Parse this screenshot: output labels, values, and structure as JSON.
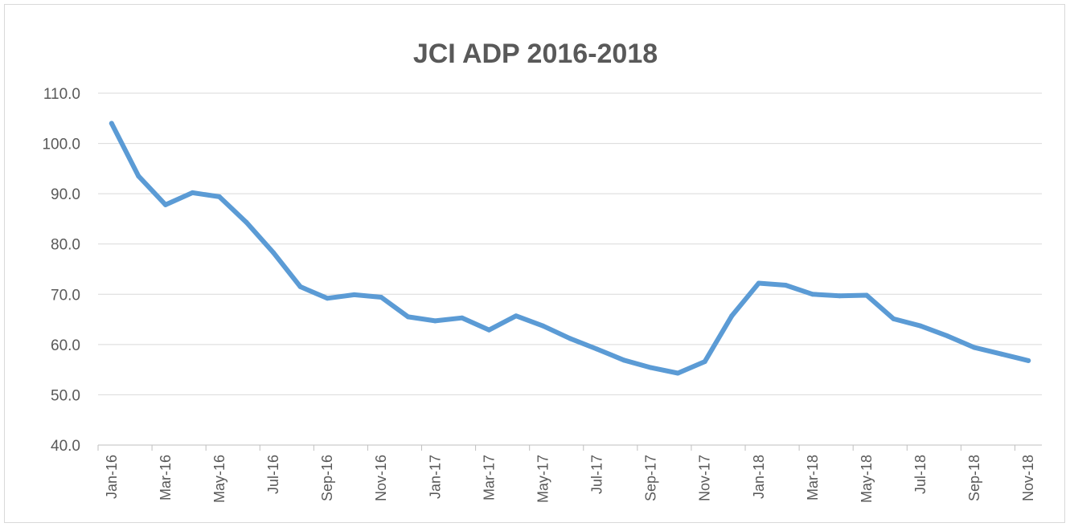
{
  "chart_data": {
    "type": "line",
    "title": "JCI ADP 2016-2018",
    "xlabel": "",
    "ylabel": "",
    "ylim": [
      40,
      110
    ],
    "y_ticks": [
      "40.0",
      "50.0",
      "60.0",
      "70.0",
      "80.0",
      "90.0",
      "100.0",
      "110.0"
    ],
    "x": [
      "Jan-16",
      "Feb-16",
      "Mar-16",
      "Apr-16",
      "May-16",
      "Jun-16",
      "Jul-16",
      "Aug-16",
      "Sep-16",
      "Oct-16",
      "Nov-16",
      "Dec-16",
      "Jan-17",
      "Feb-17",
      "Mar-17",
      "Apr-17",
      "May-17",
      "Jun-17",
      "Jul-17",
      "Aug-17",
      "Sep-17",
      "Oct-17",
      "Nov-17",
      "Dec-17",
      "Jan-18",
      "Feb-18",
      "Mar-18",
      "Apr-18",
      "May-18",
      "Jun-18",
      "Jul-18",
      "Aug-18",
      "Sep-18",
      "Oct-18",
      "Nov-18"
    ],
    "x_tick_labels": [
      "Jan-16",
      "Mar-16",
      "May-16",
      "Jul-16",
      "Sep-16",
      "Nov-16",
      "Jan-17",
      "Mar-17",
      "May-17",
      "Jul-17",
      "Sep-17",
      "Nov-17",
      "Jan-18",
      "Mar-18",
      "May-18",
      "Jul-18",
      "Sep-18",
      "Nov-18"
    ],
    "series": [
      {
        "values": [
          104.0,
          93.5,
          87.8,
          90.2,
          89.4,
          84.3,
          78.3,
          71.5,
          69.2,
          69.9,
          69.4,
          65.5,
          64.7,
          65.3,
          62.9,
          65.7,
          63.7,
          61.2,
          59.1,
          56.9,
          55.4,
          54.3,
          56.6,
          65.7,
          72.2,
          71.8,
          70.0,
          69.7,
          69.8,
          65.1,
          63.7,
          61.7,
          59.4,
          58.1,
          56.8
        ],
        "color": "#5b9bd5"
      }
    ],
    "grid": true,
    "legend": "none",
    "gridline_color": "#d9d9d9",
    "axis_color": "#bfbfbf"
  }
}
